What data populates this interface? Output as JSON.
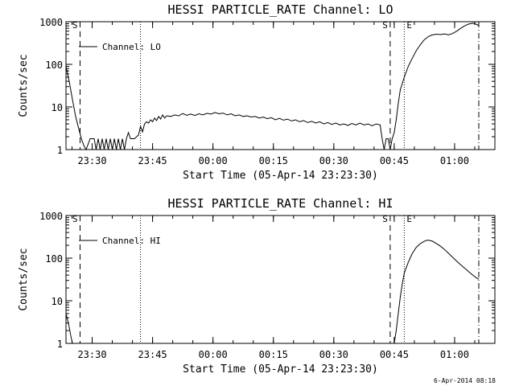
{
  "chart_data": [
    {
      "type": "line",
      "title": "HESSI PARTICLE_RATE Channel: LO",
      "xlabel": "Start Time (05-Apr-14 23:23:30)",
      "ylabel": "Counts/sec",
      "y_scale": "log",
      "ylim": [
        1,
        1000
      ],
      "xlim_minutes": [
        0,
        95
      ],
      "x_ticks": [
        {
          "label": "23:30",
          "t": 6.5
        },
        {
          "label": "23:45",
          "t": 21.5
        },
        {
          "label": "00:00",
          "t": 36.5
        },
        {
          "label": "00:15",
          "t": 51.5
        },
        {
          "label": "00:30",
          "t": 66.5
        },
        {
          "label": "00:45",
          "t": 81.5
        },
        {
          "label": "01:00",
          "t": 96.5
        }
      ],
      "y_ticks": [
        {
          "label": "1",
          "v": 1
        },
        {
          "label": "10",
          "v": 10
        },
        {
          "label": "100",
          "v": 100
        },
        {
          "label": "1000",
          "v": 1000
        }
      ],
      "legend": {
        "position": "top-left",
        "entries": [
          "Channel: LO"
        ]
      },
      "markers": [
        {
          "t": 3.5,
          "style": "dashed",
          "label": "S"
        },
        {
          "t": 18.5,
          "style": "dotted",
          "label": ""
        },
        {
          "t": 80.5,
          "style": "dashed",
          "label": "S"
        },
        {
          "t": 84.0,
          "style": "dotted",
          "label": "E"
        },
        {
          "t": 102.5,
          "style": "dashdot",
          "label": ""
        }
      ],
      "series": [
        {
          "name": "Channel: LO",
          "points": [
            [
              0.0,
              90
            ],
            [
              0.8,
              40
            ],
            [
              1.6,
              15
            ],
            [
              2.4,
              6
            ],
            [
              3.2,
              3
            ],
            [
              4.0,
              1.6
            ],
            [
              4.5,
              1.2
            ],
            [
              5.0,
              1
            ],
            [
              6.0,
              1.8
            ],
            [
              7.0,
              1.8
            ],
            [
              7.5,
              1
            ],
            [
              8.0,
              1.8
            ],
            [
              8.5,
              1
            ],
            [
              9.0,
              1.8
            ],
            [
              9.5,
              1
            ],
            [
              10.0,
              1.8
            ],
            [
              10.5,
              1
            ],
            [
              11.0,
              1.8
            ],
            [
              11.5,
              1
            ],
            [
              12.0,
              1.8
            ],
            [
              12.5,
              1
            ],
            [
              13.0,
              1.8
            ],
            [
              13.5,
              1
            ],
            [
              14.0,
              1.8
            ],
            [
              14.5,
              1
            ],
            [
              15.0,
              1.8
            ],
            [
              15.5,
              2.5
            ],
            [
              16.0,
              1.8
            ],
            [
              17.0,
              1.8
            ],
            [
              18.0,
              2.2
            ],
            [
              18.5,
              3.5
            ],
            [
              19.0,
              2.6
            ],
            [
              19.5,
              4
            ],
            [
              20.0,
              4.5
            ],
            [
              20.5,
              4.2
            ],
            [
              21.0,
              5
            ],
            [
              21.5,
              4.5
            ],
            [
              22.0,
              5.5
            ],
            [
              22.5,
              4.8
            ],
            [
              23.0,
              6
            ],
            [
              23.5,
              5.2
            ],
            [
              24.0,
              6.5
            ],
            [
              24.5,
              5.5
            ],
            [
              25.0,
              6.2
            ],
            [
              26.0,
              6.0
            ],
            [
              27.0,
              6.5
            ],
            [
              28.0,
              6.2
            ],
            [
              29.0,
              7.0
            ],
            [
              30.0,
              6.4
            ],
            [
              31.0,
              6.8
            ],
            [
              32.0,
              6.3
            ],
            [
              33.0,
              6.9
            ],
            [
              34.0,
              6.5
            ],
            [
              35.0,
              7.1
            ],
            [
              36.0,
              6.8
            ],
            [
              37.0,
              7.4
            ],
            [
              38.0,
              6.9
            ],
            [
              39.0,
              7.2
            ],
            [
              40.0,
              6.5
            ],
            [
              41.0,
              6.9
            ],
            [
              42.0,
              6.2
            ],
            [
              43.0,
              6.5
            ],
            [
              44.0,
              6.0
            ],
            [
              45.0,
              6.2
            ],
            [
              46.0,
              5.8
            ],
            [
              47.0,
              6.0
            ],
            [
              48.0,
              5.5
            ],
            [
              49.0,
              5.8
            ],
            [
              50.0,
              5.3
            ],
            [
              51.0,
              5.6
            ],
            [
              52.0,
              5.0
            ],
            [
              53.0,
              5.4
            ],
            [
              54.0,
              4.9
            ],
            [
              55.0,
              5.2
            ],
            [
              56.0,
              4.7
            ],
            [
              57.0,
              5.0
            ],
            [
              58.0,
              4.5
            ],
            [
              59.0,
              4.8
            ],
            [
              60.0,
              4.3
            ],
            [
              61.0,
              4.6
            ],
            [
              62.0,
              4.2
            ],
            [
              63.0,
              4.5
            ],
            [
              64.0,
              4.0
            ],
            [
              65.0,
              4.3
            ],
            [
              66.0,
              3.9
            ],
            [
              67.0,
              4.2
            ],
            [
              68.0,
              3.8
            ],
            [
              69.0,
              4.0
            ],
            [
              70.0,
              3.7
            ],
            [
              71.0,
              4.1
            ],
            [
              72.0,
              3.8
            ],
            [
              73.0,
              4.2
            ],
            [
              74.0,
              3.8
            ],
            [
              75.0,
              4.0
            ],
            [
              76.0,
              3.6
            ],
            [
              77.0,
              4.0
            ],
            [
              78.0,
              3.8
            ],
            [
              78.5,
              1.8
            ],
            [
              79.0,
              1
            ],
            [
              79.5,
              1.8
            ],
            [
              80.0,
              1.8
            ],
            [
              80.5,
              1
            ],
            [
              81.0,
              1.8
            ],
            [
              81.5,
              2.5
            ],
            [
              82.0,
              5
            ],
            [
              82.5,
              12
            ],
            [
              83.0,
              25
            ],
            [
              84.0,
              50
            ],
            [
              85.0,
              90
            ],
            [
              86.0,
              140
            ],
            [
              87.0,
              210
            ],
            [
              88.0,
              290
            ],
            [
              89.0,
              380
            ],
            [
              90.0,
              450
            ],
            [
              91.0,
              490
            ],
            [
              92.0,
              510
            ],
            [
              93.0,
              500
            ],
            [
              94.0,
              520
            ],
            [
              95.0,
              490
            ],
            [
              96.0,
              530
            ],
            [
              97.0,
              600
            ],
            [
              98.0,
              700
            ],
            [
              99.0,
              800
            ],
            [
              100.0,
              880
            ],
            [
              101.0,
              920
            ],
            [
              101.5,
              900
            ],
            [
              102.0,
              860
            ],
            [
              102.5,
              800
            ]
          ]
        }
      ]
    },
    {
      "type": "line",
      "title": "HESSI PARTICLE_RATE Channel: HI",
      "xlabel": "Start Time (05-Apr-14 23:23:30)",
      "ylabel": "Counts/sec",
      "y_scale": "log",
      "ylim": [
        1,
        1000
      ],
      "x_ticks": [
        {
          "label": "23:30",
          "t": 6.5
        },
        {
          "label": "23:45",
          "t": 21.5
        },
        {
          "label": "00:00",
          "t": 36.5
        },
        {
          "label": "00:15",
          "t": 51.5
        },
        {
          "label": "00:30",
          "t": 66.5
        },
        {
          "label": "00:45",
          "t": 81.5
        },
        {
          "label": "01:00",
          "t": 96.5
        }
      ],
      "y_ticks": [
        {
          "label": "1",
          "v": 1
        },
        {
          "label": "10",
          "v": 10
        },
        {
          "label": "100",
          "v": 100
        },
        {
          "label": "1000",
          "v": 1000
        }
      ],
      "legend": {
        "position": "top-left",
        "entries": [
          "Channel: HI"
        ]
      },
      "markers": [
        {
          "t": 3.5,
          "style": "dashed",
          "label": "S"
        },
        {
          "t": 18.5,
          "style": "dotted",
          "label": ""
        },
        {
          "t": 80.5,
          "style": "dashed",
          "label": "S"
        },
        {
          "t": 84.0,
          "style": "dotted",
          "label": "E"
        },
        {
          "t": 102.5,
          "style": "dashdot",
          "label": ""
        }
      ],
      "series": [
        {
          "name": "Channel: HI",
          "points": [
            [
              0.0,
              5
            ],
            [
              0.6,
              3
            ],
            [
              1.2,
              1.5
            ],
            [
              1.6,
              1
            ],
            [
              81.5,
              1
            ],
            [
              82.0,
              2
            ],
            [
              82.5,
              5
            ],
            [
              83.0,
              12
            ],
            [
              83.5,
              25
            ],
            [
              84.0,
              45
            ],
            [
              85.0,
              80
            ],
            [
              86.0,
              130
            ],
            [
              87.0,
              180
            ],
            [
              88.0,
              220
            ],
            [
              89.0,
              250
            ],
            [
              89.5,
              260
            ],
            [
              90.0,
              265
            ],
            [
              91.0,
              250
            ],
            [
              92.0,
              220
            ],
            [
              93.0,
              190
            ],
            [
              94.0,
              160
            ],
            [
              95.0,
              130
            ],
            [
              96.0,
              105
            ],
            [
              97.0,
              85
            ],
            [
              98.0,
              70
            ],
            [
              99.0,
              58
            ],
            [
              100.0,
              48
            ],
            [
              101.0,
              40
            ],
            [
              102.0,
              34
            ],
            [
              102.5,
              32
            ]
          ]
        }
      ]
    }
  ],
  "footer": {
    "timestamp": "6-Apr-2014 08:18"
  }
}
